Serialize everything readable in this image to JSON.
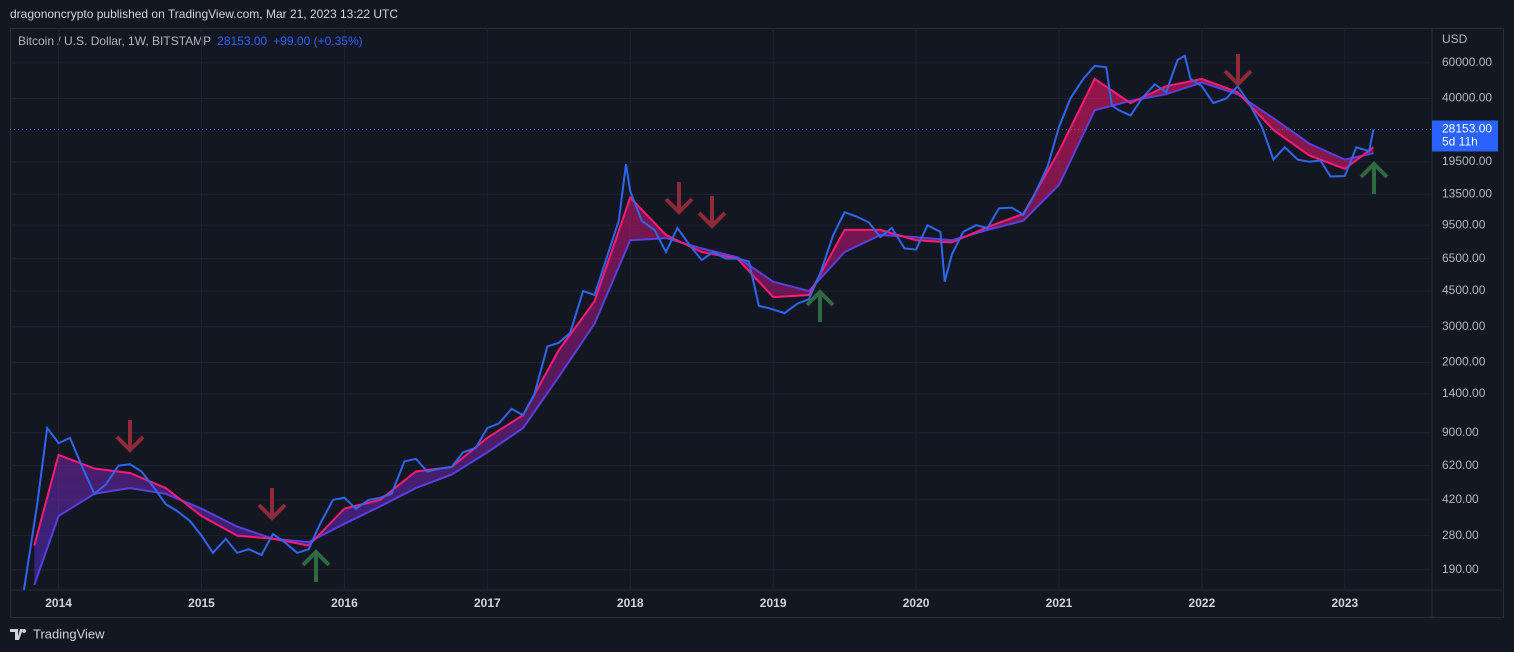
{
  "header": {
    "publisher": "dragononcrypto published on TradingView.com, Mar 21, 2023 13:22 UTC",
    "footer": "TradingView"
  },
  "chart_data": {
    "type": "line",
    "symbol": "Bitcoin / U.S. Dollar, 1W, BITSTAMP",
    "change": "+99.00 (+0.35%)",
    "currency": "USD",
    "last_price": {
      "value": 28153,
      "label": "28153.00"
    },
    "countdown": "5d 11h",
    "log_scale": true,
    "grid": true,
    "xlim": [
      2013.66,
      2023.61
    ],
    "xticks": [
      2014,
      2015,
      2016,
      2017,
      2018,
      2019,
      2020,
      2021,
      2022,
      2023
    ],
    "ylim": [
      151,
      89100
    ],
    "yticks": [
      {
        "value": 60000,
        "label": "60000.00"
      },
      {
        "value": 40000,
        "label": "40000.00"
      },
      {
        "value": 19500,
        "label": "19500.00"
      },
      {
        "value": 13500,
        "label": "13500.00"
      },
      {
        "value": 9500,
        "label": "9500.00"
      },
      {
        "value": 6500,
        "label": "6500.00"
      },
      {
        "value": 4500,
        "label": "4500.00"
      },
      {
        "value": 3000,
        "label": "3000.00"
      },
      {
        "value": 2000,
        "label": "2000.00"
      },
      {
        "value": 1400,
        "label": "1400.00"
      },
      {
        "value": 900,
        "label": "900.00"
      },
      {
        "value": 620,
        "label": "620.00"
      },
      {
        "value": 420,
        "label": "420.00"
      },
      {
        "value": 280,
        "label": "280.00"
      },
      {
        "value": 190,
        "label": "190.00"
      }
    ],
    "series": [
      {
        "color": "#2f66f0",
        "x": [
          2013.75,
          2013.85,
          2013.92,
          2014.0,
          2014.08,
          2014.17,
          2014.25,
          2014.33,
          2014.42,
          2014.5,
          2014.58,
          2014.67,
          2014.75,
          2014.83,
          2014.92,
          2015.0,
          2015.08,
          2015.17,
          2015.25,
          2015.33,
          2015.42,
          2015.5,
          2015.58,
          2015.67,
          2015.75,
          2015.83,
          2015.92,
          2016.0,
          2016.08,
          2016.17,
          2016.25,
          2016.33,
          2016.42,
          2016.5,
          2016.58,
          2016.67,
          2016.75,
          2016.83,
          2016.92,
          2017.0,
          2017.08,
          2017.17,
          2017.25,
          2017.33,
          2017.42,
          2017.5,
          2017.58,
          2017.67,
          2017.75,
          2017.83,
          2017.92,
          2017.97,
          2018.0,
          2018.08,
          2018.17,
          2018.25,
          2018.33,
          2018.42,
          2018.5,
          2018.58,
          2018.67,
          2018.75,
          2018.83,
          2018.9,
          2018.97,
          2019.08,
          2019.17,
          2019.25,
          2019.33,
          2019.42,
          2019.5,
          2019.58,
          2019.67,
          2019.75,
          2019.83,
          2019.92,
          2020.0,
          2020.08,
          2020.17,
          2020.2,
          2020.25,
          2020.33,
          2020.42,
          2020.5,
          2020.58,
          2020.67,
          2020.75,
          2020.83,
          2020.92,
          2021.0,
          2021.08,
          2021.17,
          2021.25,
          2021.33,
          2021.37,
          2021.42,
          2021.5,
          2021.58,
          2021.67,
          2021.75,
          2021.83,
          2021.88,
          2021.92,
          2022.0,
          2022.08,
          2022.17,
          2022.25,
          2022.33,
          2022.42,
          2022.5,
          2022.58,
          2022.67,
          2022.75,
          2022.83,
          2022.9,
          2023.0,
          2023.08,
          2023.17,
          2023.2
        ],
        "values": [
          140,
          400,
          950,
          800,
          850,
          600,
          450,
          500,
          620,
          630,
          580,
          480,
          400,
          370,
          330,
          280,
          230,
          270,
          230,
          240,
          225,
          285,
          260,
          230,
          240,
          320,
          420,
          430,
          380,
          420,
          430,
          450,
          650,
          670,
          580,
          600,
          610,
          720,
          760,
          950,
          1000,
          1180,
          1100,
          1400,
          2400,
          2500,
          2800,
          4500,
          4300,
          6400,
          10000,
          19000,
          14000,
          10000,
          9000,
          7000,
          9200,
          7500,
          6400,
          7000,
          6500,
          6500,
          6300,
          3800,
          3700,
          3500,
          3900,
          4100,
          5500,
          8500,
          11000,
          10500,
          9800,
          8300,
          9200,
          7300,
          7200,
          9500,
          8800,
          5000,
          6800,
          8800,
          9500,
          9200,
          11500,
          11600,
          10700,
          13500,
          18500,
          29000,
          40000,
          50000,
          58000,
          57000,
          37000,
          35000,
          33000,
          40000,
          47000,
          43000,
          62000,
          65000,
          50000,
          46000,
          38000,
          40000,
          46000,
          38000,
          29000,
          20000,
          23000,
          20000,
          19500,
          19800,
          16500,
          16600,
          23000,
          22000,
          28153
        ]
      },
      {
        "color": "#ff1a75",
        "x": [
          2013.83,
          2014.0,
          2014.25,
          2014.5,
          2014.75,
          2015.0,
          2015.25,
          2015.5,
          2015.75,
          2016.0,
          2016.25,
          2016.5,
          2016.75,
          2017.0,
          2017.25,
          2017.5,
          2017.75,
          2018.0,
          2018.25,
          2018.5,
          2018.75,
          2019.0,
          2019.25,
          2019.5,
          2019.75,
          2020.0,
          2020.25,
          2020.5,
          2020.75,
          2021.0,
          2021.25,
          2021.5,
          2021.75,
          2022.0,
          2022.25,
          2022.5,
          2022.75,
          2023.0,
          2023.2
        ],
        "values": [
          250,
          700,
          600,
          570,
          480,
          350,
          280,
          270,
          250,
          380,
          420,
          580,
          610,
          850,
          1100,
          2300,
          4000,
          13000,
          8500,
          7000,
          6500,
          4200,
          4300,
          9000,
          9000,
          8000,
          7800,
          9300,
          10800,
          22000,
          50000,
          38000,
          46000,
          50000,
          43000,
          28000,
          21000,
          18000,
          23000
        ]
      },
      {
        "color": "#5a3fe0",
        "x": [
          2013.83,
          2014.0,
          2014.25,
          2014.5,
          2014.75,
          2015.0,
          2015.25,
          2015.5,
          2015.75,
          2016.0,
          2016.25,
          2016.5,
          2016.75,
          2017.0,
          2017.25,
          2017.5,
          2017.75,
          2018.0,
          2018.25,
          2018.5,
          2018.75,
          2019.0,
          2019.25,
          2019.5,
          2019.75,
          2020.0,
          2020.25,
          2020.5,
          2020.75,
          2021.0,
          2021.25,
          2021.5,
          2021.75,
          2022.0,
          2022.25,
          2022.5,
          2022.75,
          2023.0,
          2023.2
        ],
        "values": [
          160,
          350,
          450,
          480,
          450,
          380,
          310,
          270,
          260,
          320,
          390,
          480,
          560,
          720,
          950,
          1700,
          3100,
          8000,
          8200,
          7300,
          6600,
          5000,
          4500,
          7000,
          8500,
          8300,
          8000,
          9000,
          10000,
          15000,
          35000,
          39000,
          42000,
          48000,
          42000,
          32000,
          24000,
          20000,
          21500
        ]
      }
    ]
  }
}
